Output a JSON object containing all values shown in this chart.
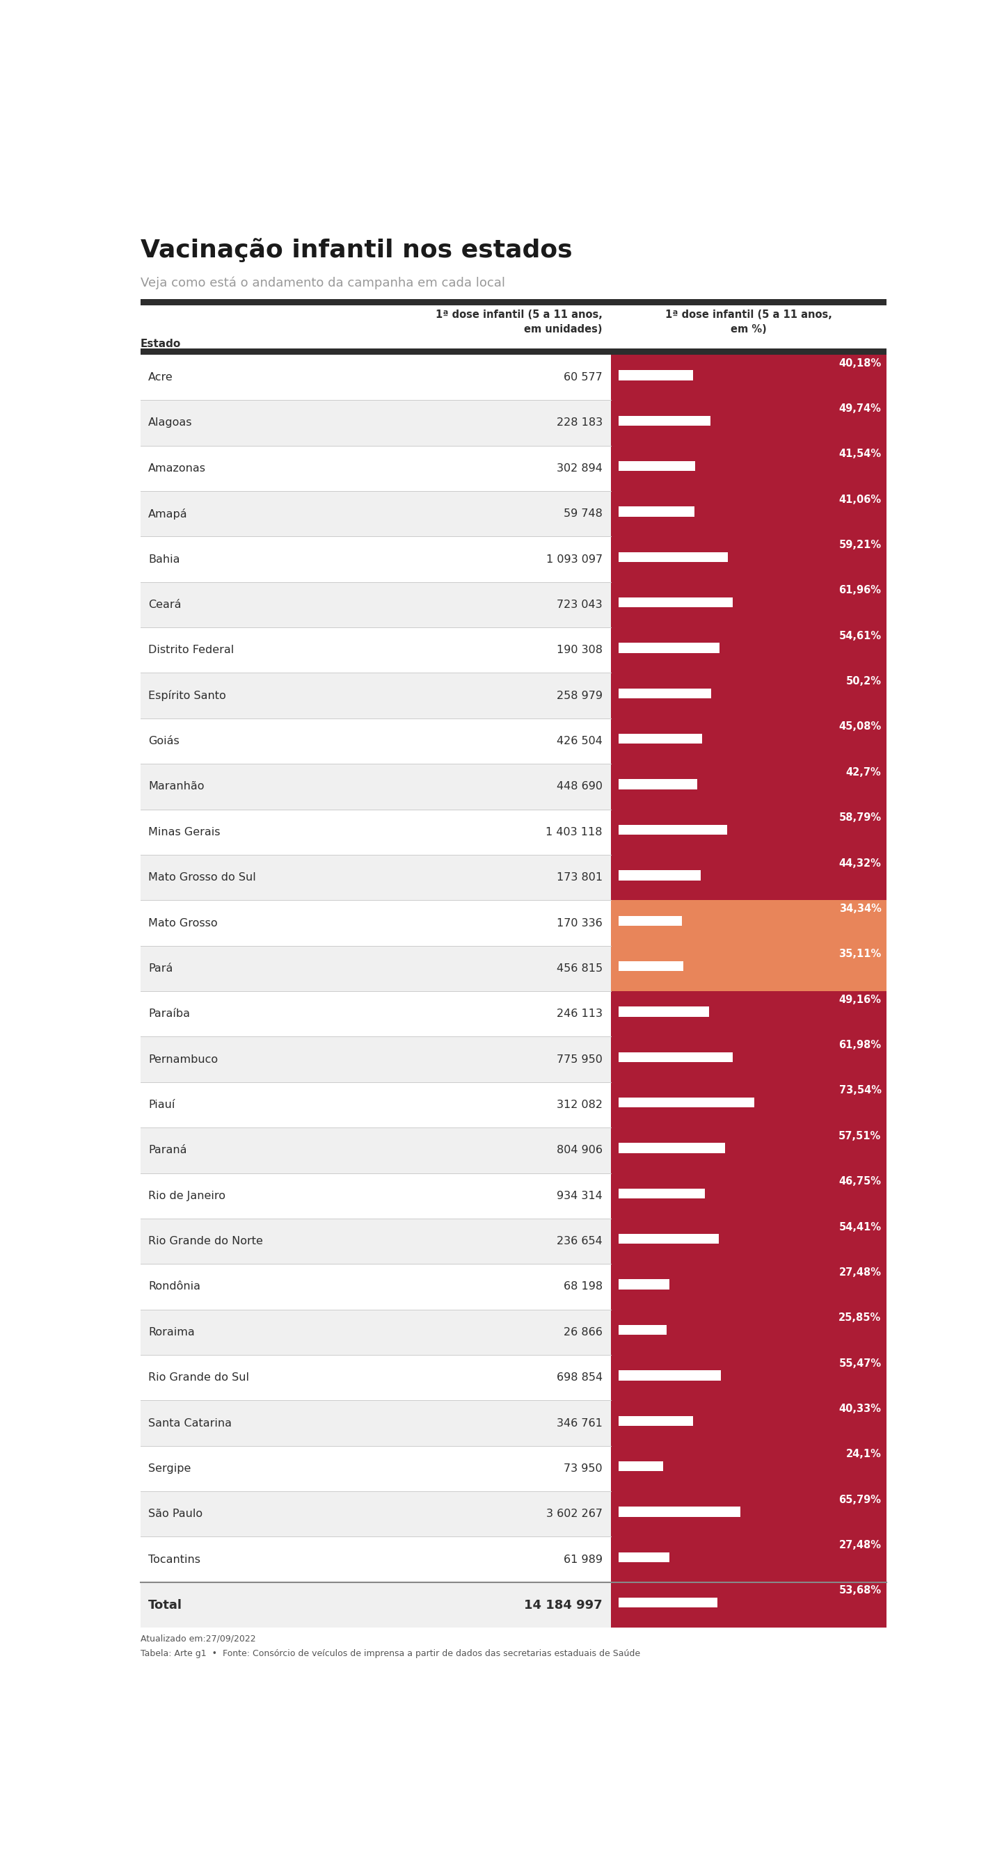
{
  "title": "Vacinação infantil nos estados",
  "subtitle": "Veja como está o andamento da campanha em cada local",
  "col1_header": "Estado",
  "col2_header": "1ª dose infantil (5 a 11 anos,\nem unidades)",
  "col3_header": "1ª dose infantil (5 a 11 anos,\nem %)",
  "footer1": "Atualizado em:27/09/2022",
  "footer2": "Tabela: Arte g1  •  Fonte: Consórcio de veículos de imprensa a partir de dados das secretarias estaduais de Saúde",
  "states": [
    {
      "name": "Acre",
      "units": "60 577",
      "pct": 40.18,
      "pct_str": "40,18%",
      "color": "#ac1c35"
    },
    {
      "name": "Alagoas",
      "units": "228 183",
      "pct": 49.74,
      "pct_str": "49,74%",
      "color": "#ac1c35"
    },
    {
      "name": "Amazonas",
      "units": "302 894",
      "pct": 41.54,
      "pct_str": "41,54%",
      "color": "#ac1c35"
    },
    {
      "name": "Amapá",
      "units": "59 748",
      "pct": 41.06,
      "pct_str": "41,06%",
      "color": "#ac1c35"
    },
    {
      "name": "Bahia",
      "units": "1 093 097",
      "pct": 59.21,
      "pct_str": "59,21%",
      "color": "#ac1c35"
    },
    {
      "name": "Ceará",
      "units": "723 043",
      "pct": 61.96,
      "pct_str": "61,96%",
      "color": "#ac1c35"
    },
    {
      "name": "Distrito Federal",
      "units": "190 308",
      "pct": 54.61,
      "pct_str": "54,61%",
      "color": "#ac1c35"
    },
    {
      "name": "Espírito Santo",
      "units": "258 979",
      "pct": 50.2,
      "pct_str": "50,2%",
      "color": "#ac1c35"
    },
    {
      "name": "Goiás",
      "units": "426 504",
      "pct": 45.08,
      "pct_str": "45,08%",
      "color": "#ac1c35"
    },
    {
      "name": "Maranhão",
      "units": "448 690",
      "pct": 42.7,
      "pct_str": "42,7%",
      "color": "#ac1c35"
    },
    {
      "name": "Minas Gerais",
      "units": "1 403 118",
      "pct": 58.79,
      "pct_str": "58,79%",
      "color": "#ac1c35"
    },
    {
      "name": "Mato Grosso do Sul",
      "units": "173 801",
      "pct": 44.32,
      "pct_str": "44,32%",
      "color": "#ac1c35"
    },
    {
      "name": "Mato Grosso",
      "units": "170 336",
      "pct": 34.34,
      "pct_str": "34,34%",
      "color": "#e8855a"
    },
    {
      "name": "Pará",
      "units": "456 815",
      "pct": 35.11,
      "pct_str": "35,11%",
      "color": "#e8855a"
    },
    {
      "name": "Paraíba",
      "units": "246 113",
      "pct": 49.16,
      "pct_str": "49,16%",
      "color": "#ac1c35"
    },
    {
      "name": "Pernambuco",
      "units": "775 950",
      "pct": 61.98,
      "pct_str": "61,98%",
      "color": "#ac1c35"
    },
    {
      "name": "Piauí",
      "units": "312 082",
      "pct": 73.54,
      "pct_str": "73,54%",
      "color": "#ac1c35"
    },
    {
      "name": "Paraná",
      "units": "804 906",
      "pct": 57.51,
      "pct_str": "57,51%",
      "color": "#ac1c35"
    },
    {
      "name": "Rio de Janeiro",
      "units": "934 314",
      "pct": 46.75,
      "pct_str": "46,75%",
      "color": "#ac1c35"
    },
    {
      "name": "Rio Grande do Norte",
      "units": "236 654",
      "pct": 54.41,
      "pct_str": "54,41%",
      "color": "#ac1c35"
    },
    {
      "name": "Rondônia",
      "units": "68 198",
      "pct": 27.48,
      "pct_str": "27,48%",
      "color": "#ac1c35"
    },
    {
      "name": "Roraima",
      "units": "26 866",
      "pct": 25.85,
      "pct_str": "25,85%",
      "color": "#ac1c35"
    },
    {
      "name": "Rio Grande do Sul",
      "units": "698 854",
      "pct": 55.47,
      "pct_str": "55,47%",
      "color": "#ac1c35"
    },
    {
      "name": "Santa Catarina",
      "units": "346 761",
      "pct": 40.33,
      "pct_str": "40,33%",
      "color": "#ac1c35"
    },
    {
      "name": "Sergipe",
      "units": "73 950",
      "pct": 24.1,
      "pct_str": "24,1%",
      "color": "#ac1c35"
    },
    {
      "name": "São Paulo",
      "units": "3 602 267",
      "pct": 65.79,
      "pct_str": "65,79%",
      "color": "#ac1c35"
    },
    {
      "name": "Tocantins",
      "units": "61 989",
      "pct": 27.48,
      "pct_str": "27,48%",
      "color": "#ac1c35"
    }
  ],
  "total": {
    "name": "Total",
    "units": "14 184 997",
    "pct": 53.68,
    "pct_str": "53,68%",
    "color": "#ac1c35"
  },
  "bg_color": "#ffffff",
  "row_colors": [
    "#ffffff",
    "#f0f0f0"
  ],
  "dark_header_color": "#2d2d2d"
}
